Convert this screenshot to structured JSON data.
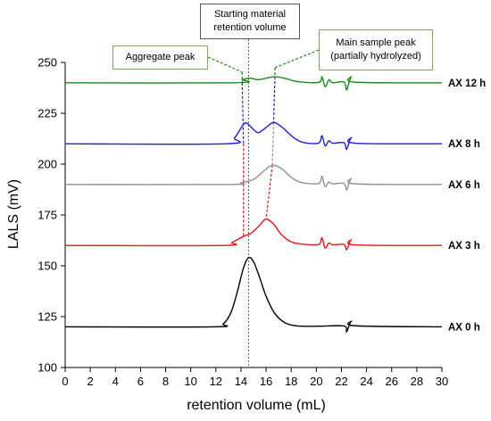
{
  "chart_data": {
    "type": "line",
    "xlabel": "retention volume (mL)",
    "ylabel": "LALS (mV)",
    "xlim": [
      0,
      30
    ],
    "ylim": [
      100,
      250
    ],
    "x_ticks": [
      0,
      2,
      4,
      6,
      8,
      10,
      12,
      14,
      16,
      18,
      20,
      22,
      24,
      26,
      28,
      30
    ],
    "y_ticks": [
      100,
      125,
      150,
      175,
      200,
      225,
      250
    ],
    "grid": false,
    "series": [
      {
        "name": "AX 12 h",
        "color": "#1a8a1a",
        "baseline": 240,
        "points": [
          [
            0,
            240
          ],
          [
            13.5,
            240
          ],
          [
            14.1,
            241.5
          ],
          [
            14.7,
            242.3
          ],
          [
            15.3,
            241.5
          ],
          [
            15.9,
            242.1
          ],
          [
            16.7,
            243
          ],
          [
            17.6,
            242
          ],
          [
            18.5,
            240.6
          ],
          [
            20.2,
            240.2
          ],
          [
            20.45,
            243
          ],
          [
            20.7,
            238
          ],
          [
            21.0,
            241.5
          ],
          [
            21.3,
            240
          ],
          [
            22.2,
            240.4
          ],
          [
            22.4,
            236.5
          ],
          [
            22.6,
            240
          ],
          [
            22.8,
            243
          ],
          [
            23.1,
            240.3
          ],
          [
            30,
            240
          ]
        ]
      },
      {
        "name": "AX 8 h",
        "color": "#2020d0",
        "baseline": 210,
        "points": [
          [
            0,
            210
          ],
          [
            12.8,
            210
          ],
          [
            13.5,
            213
          ],
          [
            14.2,
            219.5
          ],
          [
            14.5,
            220
          ],
          [
            15.0,
            217
          ],
          [
            15.4,
            215.5
          ],
          [
            16.0,
            218
          ],
          [
            16.6,
            220.5
          ],
          [
            17.3,
            218
          ],
          [
            18.2,
            213
          ],
          [
            19.0,
            210.6
          ],
          [
            20.2,
            210.4
          ],
          [
            20.45,
            214
          ],
          [
            20.7,
            209
          ],
          [
            21.0,
            211.5
          ],
          [
            21.3,
            210.3
          ],
          [
            22.2,
            210.5
          ],
          [
            22.4,
            207.2
          ],
          [
            22.6,
            210.5
          ],
          [
            22.8,
            213
          ],
          [
            23.1,
            210.3
          ],
          [
            30,
            210
          ]
        ]
      },
      {
        "name": "AX 6 h",
        "color": "#909090",
        "baseline": 190,
        "points": [
          [
            0,
            190
          ],
          [
            13.0,
            190
          ],
          [
            14.0,
            190.8
          ],
          [
            15.0,
            192.5
          ],
          [
            15.8,
            196.5
          ],
          [
            16.5,
            199.5
          ],
          [
            17.3,
            197.5
          ],
          [
            18.0,
            193.5
          ],
          [
            18.8,
            191
          ],
          [
            20.2,
            190.5
          ],
          [
            20.45,
            194
          ],
          [
            20.7,
            189
          ],
          [
            21.0,
            191.2
          ],
          [
            21.3,
            190.3
          ],
          [
            22.2,
            190.5
          ],
          [
            22.4,
            187.3
          ],
          [
            22.6,
            190.5
          ],
          [
            22.8,
            193
          ],
          [
            23.1,
            190.3
          ],
          [
            30,
            190
          ]
        ]
      },
      {
        "name": "AX 3 h",
        "color": "#e01818",
        "baseline": 160,
        "points": [
          [
            0,
            160
          ],
          [
            12.5,
            160
          ],
          [
            13.3,
            161.5
          ],
          [
            14.2,
            164.5
          ],
          [
            14.8,
            166
          ],
          [
            15.5,
            170
          ],
          [
            16.0,
            173
          ],
          [
            16.6,
            170.5
          ],
          [
            17.2,
            165.5
          ],
          [
            18.0,
            161.8
          ],
          [
            19.0,
            160.6
          ],
          [
            20.2,
            160.5
          ],
          [
            20.45,
            163.8
          ],
          [
            20.7,
            158.8
          ],
          [
            21.0,
            161.2
          ],
          [
            21.3,
            160.3
          ],
          [
            22.2,
            160.5
          ],
          [
            22.4,
            157.8
          ],
          [
            22.6,
            160.5
          ],
          [
            22.8,
            162.8
          ],
          [
            23.1,
            160.3
          ],
          [
            30,
            160
          ]
        ]
      },
      {
        "name": "AX 0 h",
        "color": "#000000",
        "baseline": 120,
        "points": [
          [
            0,
            120
          ],
          [
            11.8,
            120
          ],
          [
            12.6,
            121.5
          ],
          [
            13.2,
            127
          ],
          [
            13.7,
            137
          ],
          [
            14.2,
            149
          ],
          [
            14.6,
            154
          ],
          [
            15.0,
            152
          ],
          [
            15.5,
            144
          ],
          [
            16.0,
            135
          ],
          [
            16.7,
            126.5
          ],
          [
            17.5,
            122
          ],
          [
            18.5,
            120.4
          ],
          [
            20.2,
            120.3
          ],
          [
            22.2,
            120.4
          ],
          [
            22.4,
            117.5
          ],
          [
            22.6,
            120.5
          ],
          [
            22.8,
            122.8
          ],
          [
            23.1,
            120.5
          ],
          [
            30,
            120
          ]
        ]
      }
    ],
    "annotations": {
      "aggregate": "Aggregate peak",
      "main_sample": "Main sample peak\n(partially hydrolyzed)",
      "starting_material": "Starting material\nretention volume"
    },
    "reference_line_x": 14.6,
    "aggregate_markers": [
      [
        14.1,
        240
      ],
      [
        14.2,
        210
      ],
      [
        14.2,
        164
      ]
    ],
    "main_peak_markers": [
      [
        16.7,
        243
      ],
      [
        16.6,
        220.5
      ],
      [
        16.5,
        199.5
      ],
      [
        16.0,
        173
      ]
    ]
  }
}
